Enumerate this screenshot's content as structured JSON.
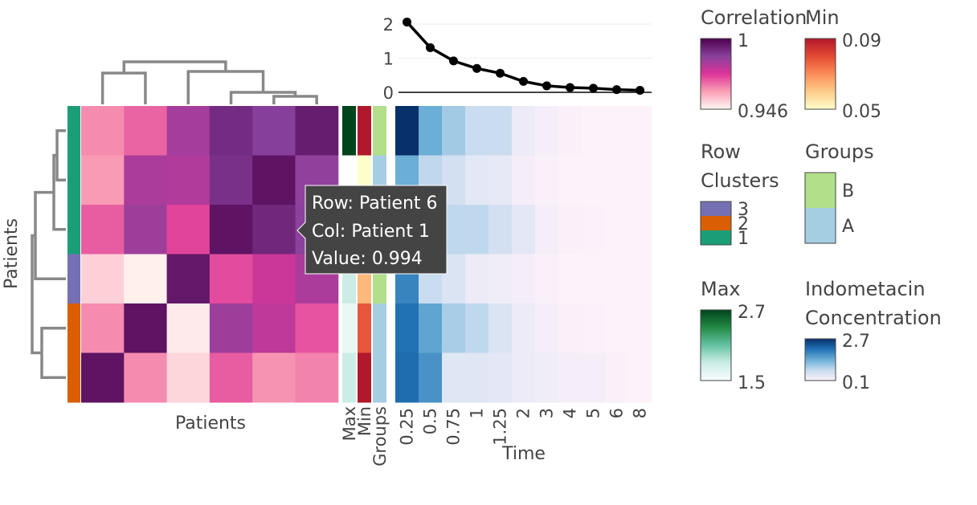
{
  "chart_data": {
    "type": "heatmap",
    "correlation": {
      "x_title": "Patients",
      "y_title": "Patients",
      "values": [
        [
          0.962,
          0.967,
          0.982,
          0.991,
          0.987,
          0.994
        ],
        [
          0.96,
          0.981,
          0.98,
          0.99,
          0.996,
          0.985
        ],
        [
          0.968,
          0.983,
          0.971,
          0.996,
          0.992,
          0.986
        ],
        [
          0.952,
          0.947,
          0.995,
          0.97,
          0.976,
          0.981
        ],
        [
          0.962,
          0.996,
          0.948,
          0.983,
          0.978,
          0.969
        ],
        [
          0.996,
          0.962,
          0.951,
          0.968,
          0.961,
          0.963
        ]
      ],
      "row_clusters": [
        1,
        1,
        1,
        3,
        2,
        2
      ]
    },
    "annotation_columns": {
      "labels": [
        "Max",
        "Min",
        "Groups"
      ],
      "max": [
        2.7,
        null,
        null,
        1.8,
        1.6,
        1.8
      ],
      "min": [
        0.09,
        0.05,
        null,
        0.063,
        0.078,
        0.09
      ],
      "groups": [
        "B",
        "A",
        null,
        "B",
        "A",
        "A"
      ]
    },
    "time_heatmap": {
      "x_title": "Time",
      "x_labels": [
        "0.25",
        "0.5",
        "0.75",
        "1",
        "1.25",
        "2",
        "3",
        "4",
        "5",
        "6",
        "8"
      ],
      "values": [
        [
          2.7,
          1.4,
          1.0,
          0.7,
          0.7,
          0.3,
          0.2,
          0.15,
          0.1,
          0.1,
          0.1
        ],
        [
          1.4,
          0.8,
          0.6,
          0.4,
          0.35,
          0.2,
          0.15,
          0.1,
          0.1,
          0.1,
          0.1
        ],
        [
          1.1,
          0.9,
          0.8,
          0.8,
          0.6,
          0.4,
          0.2,
          0.15,
          0.12,
          0.1,
          0.1
        ],
        [
          1.85,
          0.7,
          0.5,
          0.3,
          0.25,
          0.2,
          0.15,
          0.1,
          0.1,
          0.1,
          0.1
        ],
        [
          2.05,
          1.5,
          0.95,
          0.8,
          0.5,
          0.3,
          0.2,
          0.15,
          0.12,
          0.1,
          0.1
        ],
        [
          2.1,
          1.7,
          0.45,
          0.45,
          0.4,
          0.3,
          0.25,
          0.2,
          0.2,
          0.15,
          0.1
        ]
      ]
    },
    "line": {
      "y_ticks": [
        0,
        1,
        2
      ],
      "ylim": [
        0,
        2.1
      ],
      "values": [
        2.06,
        1.31,
        0.92,
        0.7,
        0.56,
        0.32,
        0.19,
        0.14,
        0.12,
        0.08,
        0.06
      ]
    },
    "legends": [
      {
        "title_lines": [
          "Correlation"
        ],
        "max": "1",
        "min": "0.946",
        "colors": [
          "#4d004b",
          "#88419d",
          "#dd3497",
          "#fa9fb5",
          "#fff7f3"
        ]
      },
      {
        "title_lines": [
          "Min"
        ],
        "max": "0.09",
        "min": "0.05",
        "colors": [
          "#b2182b",
          "#e34a33",
          "#fc8d59",
          "#fdcc8a",
          "#ffffcc"
        ]
      },
      {
        "title_lines": [
          "Row",
          "Clusters"
        ],
        "labels": [
          "3",
          "2",
          "1"
        ],
        "colors": [
          "#7570b3",
          "#d95f02",
          "#1b9e77"
        ]
      },
      {
        "title_lines": [
          "Groups"
        ],
        "labels": [
          "B",
          "A"
        ],
        "colors": [
          "#b2df8a",
          "#a6cee3"
        ]
      },
      {
        "title_lines": [
          "Max"
        ],
        "max": "2.7",
        "min": "1.5",
        "colors": [
          "#00441b",
          "#238b45",
          "#66c2a4",
          "#ccece6",
          "#f7fcfd"
        ]
      },
      {
        "title_lines": [
          "Indometacin",
          "Concentration"
        ],
        "max": "2.7",
        "min": "0.1",
        "colors": [
          "#08306b",
          "#2171b5",
          "#6baed6",
          "#c6dbef",
          "#fdf2fa"
        ]
      }
    ],
    "tooltip": {
      "row": "Row: Patient 6",
      "col": "Col: Patient 1",
      "value": "Value: 0.994"
    }
  }
}
